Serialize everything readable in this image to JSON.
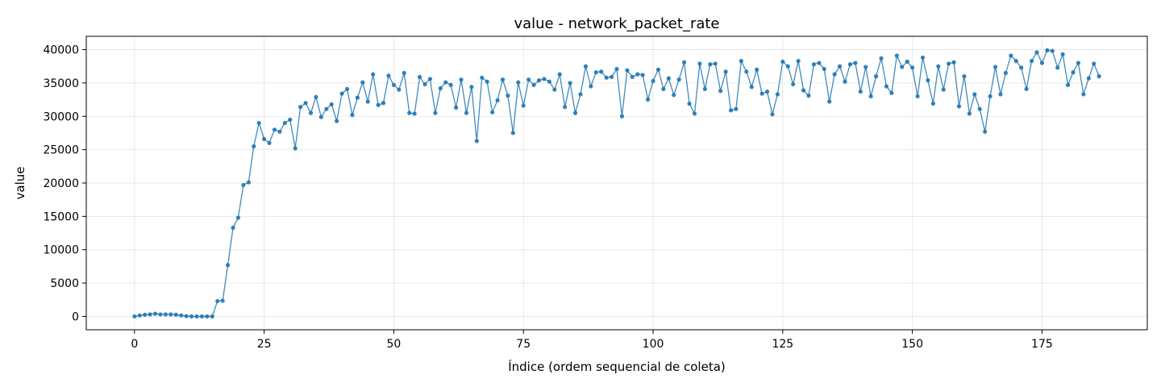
{
  "chart_data": {
    "type": "line",
    "title": "value - network_packet_rate",
    "xlabel": "Índice (ordem sequencial de coleta)",
    "ylabel": "value",
    "xlim": [
      -9.3,
      195.3
    ],
    "ylim": [
      -2000,
      42000
    ],
    "xticks": [
      0,
      25,
      50,
      75,
      100,
      125,
      150,
      175
    ],
    "yticks": [
      0,
      5000,
      10000,
      15000,
      20000,
      25000,
      30000,
      35000,
      40000
    ],
    "grid": true,
    "line_color": "#1f77b4",
    "series": [
      {
        "values": [
          0,
          150,
          250,
          300,
          400,
          300,
          300,
          300,
          250,
          150,
          50,
          0,
          0,
          0,
          0,
          0,
          2300,
          2350,
          7700,
          13300,
          14800,
          19700,
          20100,
          25500,
          29000,
          26600,
          26000,
          28000,
          27700,
          29000,
          29500,
          25200,
          31400,
          32000,
          30500,
          32900,
          29900,
          31100,
          31800,
          29300,
          33400,
          34100,
          30200,
          32800,
          35100,
          32200,
          36300,
          31700,
          32000,
          36100,
          34700,
          34000,
          36500,
          30500,
          30400,
          35900,
          34800,
          35600,
          30500,
          34200,
          35100,
          34700,
          31300,
          35500,
          30500,
          34400,
          26300,
          35800,
          35200,
          30600,
          32400,
          35500,
          33100,
          27500,
          35100,
          31600,
          35500,
          34700,
          35400,
          35600,
          35200,
          34000,
          36300,
          31400,
          35000,
          30500,
          33300,
          37500,
          34500,
          36600,
          36700,
          35800,
          35900,
          37100,
          30000,
          36900,
          35900,
          36300,
          36200,
          32500,
          35300,
          37000,
          34100,
          35700,
          33200,
          35500,
          38100,
          31900,
          30400,
          37900,
          34100,
          37800,
          37900,
          33800,
          36700,
          30900,
          31100,
          38300,
          36700,
          34400,
          37000,
          33400,
          33700,
          30300,
          33300,
          38200,
          37500,
          34800,
          38300,
          33900,
          33100,
          37800,
          38000,
          37100,
          32200,
          36300,
          37500,
          35200,
          37800,
          38000,
          33700,
          37400,
          33000,
          36000,
          38700,
          34500,
          33500,
          39100,
          37400,
          38200,
          37300,
          33000,
          38800,
          35400,
          31900,
          37500,
          34000,
          37900,
          38100,
          31500,
          36000,
          30400,
          33300,
          31100,
          27700,
          33000,
          37400,
          33300,
          36500,
          39100,
          38300,
          37300,
          34100,
          38300,
          39600,
          38000,
          39900,
          39800,
          37300,
          39300,
          34700,
          36600,
          38000,
          33300,
          35700,
          37900,
          36000
        ]
      }
    ]
  }
}
